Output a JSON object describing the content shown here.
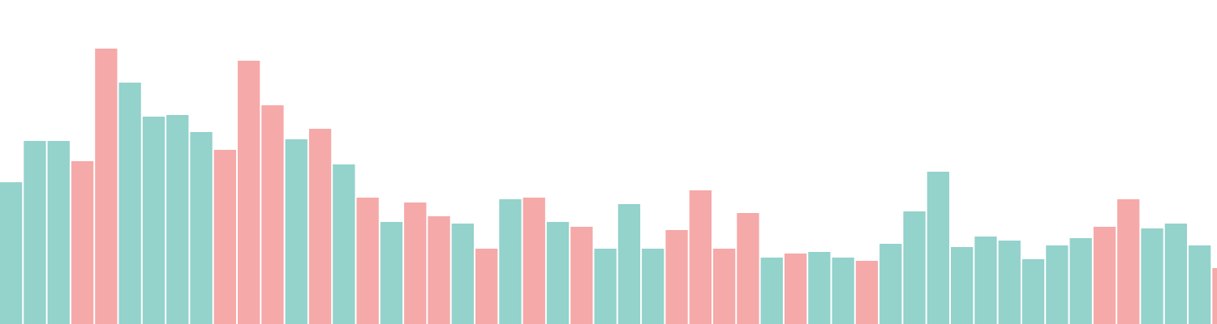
{
  "chart_data": {
    "type": "bar",
    "title": "",
    "xlabel": "",
    "ylabel": "",
    "grid": false,
    "legend": "none",
    "ylim": [
      0,
      400
    ],
    "colors": {
      "teal": "#94d2cc",
      "pink": "#f5a9a8"
    },
    "bars": [
      {
        "value": 175,
        "color": "teal"
      },
      {
        "value": 226,
        "color": "teal"
      },
      {
        "value": 226,
        "color": "teal"
      },
      {
        "value": 201,
        "color": "pink"
      },
      {
        "value": 340,
        "color": "pink"
      },
      {
        "value": 298,
        "color": "teal"
      },
      {
        "value": 256,
        "color": "teal"
      },
      {
        "value": 258,
        "color": "teal"
      },
      {
        "value": 237,
        "color": "teal"
      },
      {
        "value": 215,
        "color": "pink"
      },
      {
        "value": 325,
        "color": "pink"
      },
      {
        "value": 270,
        "color": "pink"
      },
      {
        "value": 228,
        "color": "teal"
      },
      {
        "value": 241,
        "color": "pink"
      },
      {
        "value": 197,
        "color": "teal"
      },
      {
        "value": 156,
        "color": "pink"
      },
      {
        "value": 126,
        "color": "teal"
      },
      {
        "value": 150,
        "color": "pink"
      },
      {
        "value": 133,
        "color": "pink"
      },
      {
        "value": 124,
        "color": "teal"
      },
      {
        "value": 93,
        "color": "pink"
      },
      {
        "value": 154,
        "color": "teal"
      },
      {
        "value": 156,
        "color": "pink"
      },
      {
        "value": 126,
        "color": "teal"
      },
      {
        "value": 120,
        "color": "pink"
      },
      {
        "value": 93,
        "color": "teal"
      },
      {
        "value": 148,
        "color": "teal"
      },
      {
        "value": 93,
        "color": "teal"
      },
      {
        "value": 116,
        "color": "pink"
      },
      {
        "value": 165,
        "color": "pink"
      },
      {
        "value": 93,
        "color": "pink"
      },
      {
        "value": 137,
        "color": "pink"
      },
      {
        "value": 82,
        "color": "teal"
      },
      {
        "value": 87,
        "color": "pink"
      },
      {
        "value": 89,
        "color": "teal"
      },
      {
        "value": 82,
        "color": "teal"
      },
      {
        "value": 78,
        "color": "pink"
      },
      {
        "value": 99,
        "color": "teal"
      },
      {
        "value": 139,
        "color": "teal"
      },
      {
        "value": 188,
        "color": "teal"
      },
      {
        "value": 95,
        "color": "teal"
      },
      {
        "value": 108,
        "color": "teal"
      },
      {
        "value": 103,
        "color": "teal"
      },
      {
        "value": 80,
        "color": "teal"
      },
      {
        "value": 97,
        "color": "teal"
      },
      {
        "value": 106,
        "color": "teal"
      },
      {
        "value": 120,
        "color": "pink"
      },
      {
        "value": 154,
        "color": "pink"
      },
      {
        "value": 118,
        "color": "teal"
      },
      {
        "value": 124,
        "color": "teal"
      },
      {
        "value": 97,
        "color": "teal"
      },
      {
        "value": 69,
        "color": "pink"
      }
    ]
  }
}
